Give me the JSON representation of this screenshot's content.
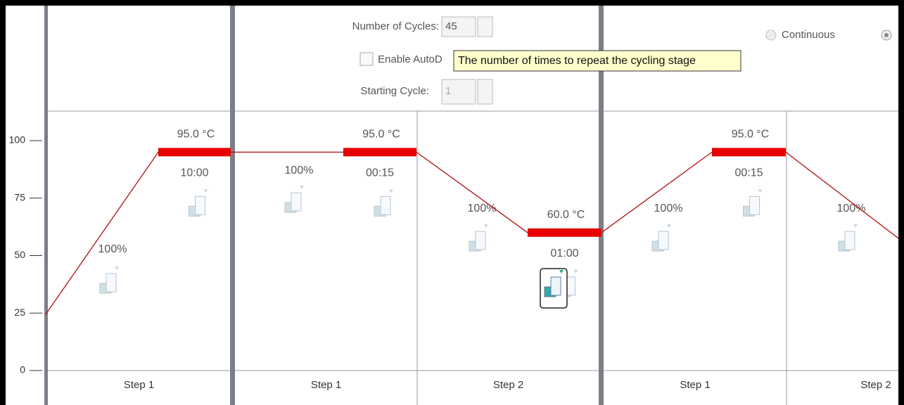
{
  "controls": {
    "cycles_label": "Number of Cycles:",
    "cycles_value": "45",
    "autodelta_label": "Enable AutoD",
    "starting_cycle_label": "Starting Cycle:",
    "starting_cycle_value": "1",
    "continuous_label": "Continuous"
  },
  "tooltip": "The number of times to repeat the cycling stage",
  "axis": {
    "yticks": [
      0,
      25,
      50,
      75,
      100
    ]
  },
  "stages": [
    {
      "steps": [
        {
          "label": "Step 1",
          "temperature": "95.0 °C",
          "time": "10:00",
          "ramp": "100%"
        }
      ]
    },
    {
      "steps": [
        {
          "label": "Step 1",
          "temperature": "95.0 °C",
          "time": "00:15",
          "ramp": "100%"
        },
        {
          "label": "Step 2",
          "temperature": "60.0 °C",
          "time": "01:00",
          "ramp": "100%"
        }
      ]
    },
    {
      "steps": [
        {
          "label": "Step 1",
          "temperature": "95.0 °C",
          "time": "00:15",
          "ramp": "100%"
        },
        {
          "label": "Step 2",
          "ramp": "100%"
        }
      ]
    }
  ]
}
